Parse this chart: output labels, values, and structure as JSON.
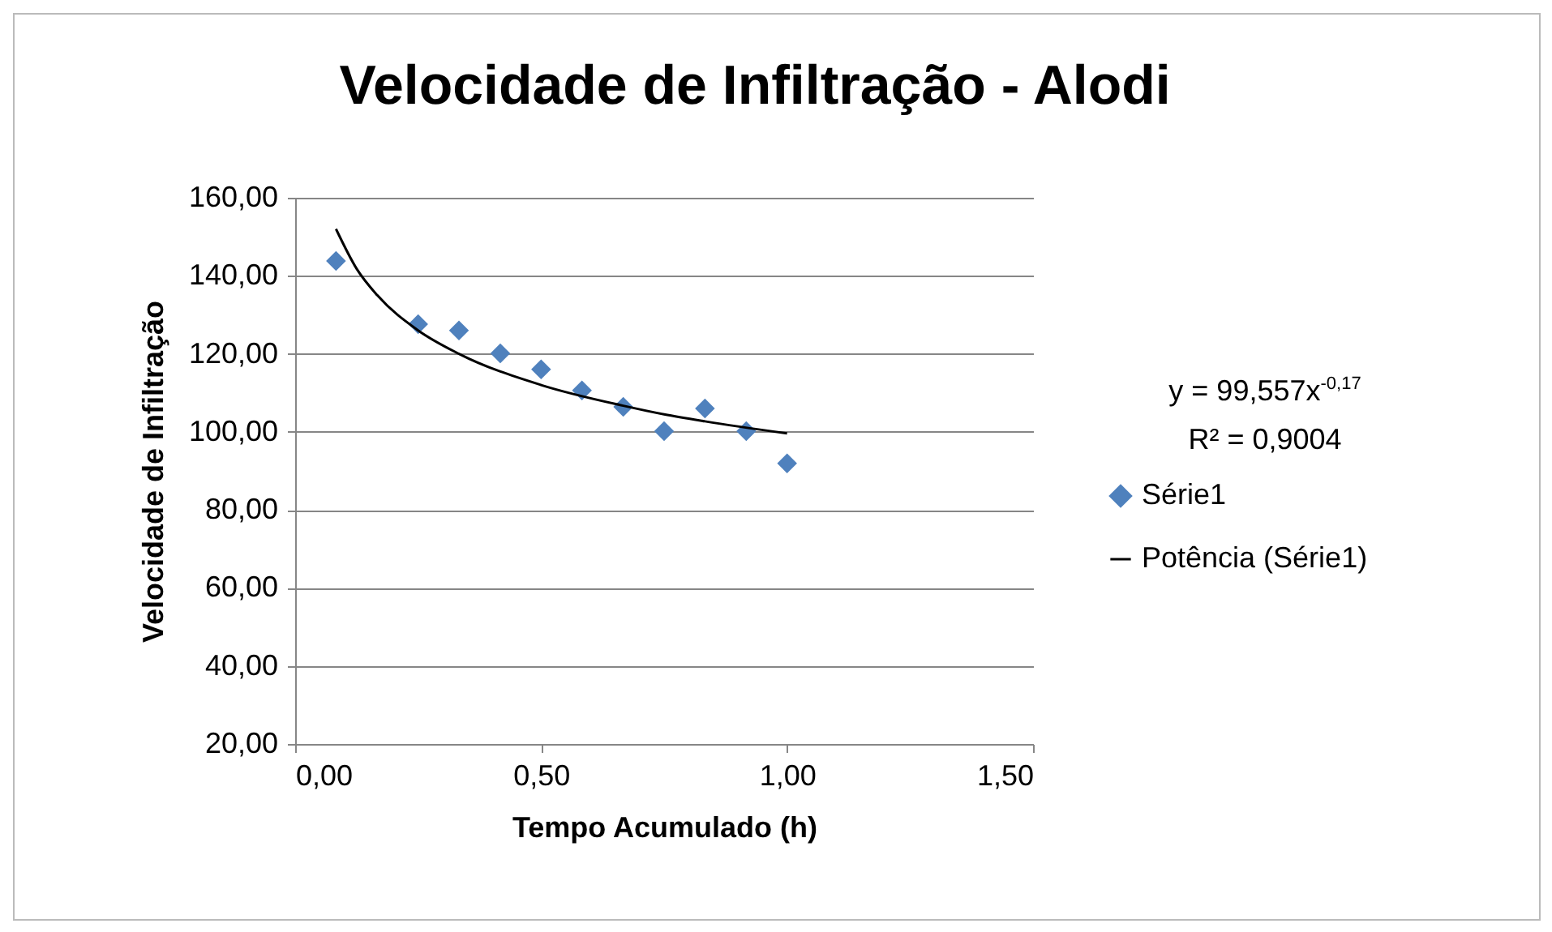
{
  "chart_data": {
    "type": "scatter",
    "title": "Velocidade de Infiltração - Alodi",
    "xlabel": "Tempo Acumulado (h)",
    "ylabel": "Velocidade de Infiltração",
    "xlim": [
      0,
      1.5
    ],
    "xticks": [
      {
        "value": 0,
        "label": "0,00"
      },
      {
        "value": 0.5,
        "label": "0,50"
      },
      {
        "value": 1,
        "label": "1,00"
      },
      {
        "value": 1.5,
        "label": "1,50"
      }
    ],
    "ylim": [
      20,
      160
    ],
    "yticks": [
      {
        "value": 20,
        "label": "20,00"
      },
      {
        "value": 40,
        "label": "40,00"
      },
      {
        "value": 60,
        "label": "60,00"
      },
      {
        "value": 80,
        "label": "80,00"
      },
      {
        "value": 100,
        "label": "100,00"
      },
      {
        "value": 120,
        "label": "120,00"
      },
      {
        "value": 140,
        "label": "140,00"
      },
      {
        "value": 160,
        "label": "160,00"
      }
    ],
    "grid": "y",
    "legend": "right",
    "annotations": [
      "y = 99,557x$^{-0,17}$",
      "R² = 0,9004"
    ],
    "series": [
      {
        "name": "Série1",
        "color": "#4f81bd",
        "marker": "diamond",
        "x": [
          0.083,
          0.25,
          0.333,
          0.417,
          0.5,
          0.583,
          0.667,
          0.75,
          0.833,
          0.917,
          1.0
        ],
        "values": [
          143.8,
          127.6,
          126.0,
          120.1,
          116.0,
          110.6,
          106.4,
          100.2,
          106.0,
          100.2,
          91.9
        ]
      },
      {
        "name": "Potência (Série1)",
        "type": "line",
        "marker": "none",
        "line_style": "solid",
        "color": "#000000",
        "x": [
          0.083,
          0.125,
          0.167,
          0.25,
          0.333,
          0.5,
          0.667,
          0.75,
          0.833,
          1.0
        ],
        "values": [
          152.0,
          141.8,
          135.0,
          126.0,
          120.0,
          112.0,
          106.7,
          104.5,
          102.7,
          99.6
        ]
      }
    ]
  }
}
